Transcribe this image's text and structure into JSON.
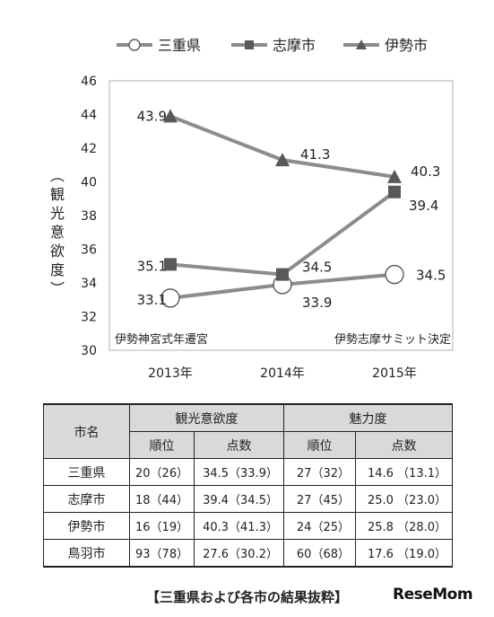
{
  "chart_data": {
    "type": "line",
    "categories": [
      "2013年",
      "2014年",
      "2015年"
    ],
    "ylabel": "（観光意欲度）",
    "ylim": [
      30,
      46
    ],
    "yticks": [
      30,
      32,
      34,
      36,
      38,
      40,
      42,
      44,
      46
    ],
    "legend_position": "top",
    "series": [
      {
        "name": "三重県",
        "marker": "circle",
        "values": [
          33.1,
          33.9,
          34.5
        ],
        "labels": [
          "33.1",
          "33.9",
          "34.5"
        ]
      },
      {
        "name": "志摩市",
        "marker": "square",
        "values": [
          35.1,
          34.5,
          39.4
        ],
        "labels": [
          "35.1",
          "34.5",
          "39.4"
        ]
      },
      {
        "name": "伊勢市",
        "marker": "triangle",
        "values": [
          43.9,
          41.3,
          40.3
        ],
        "labels": [
          "43.9",
          "41.3",
          "40.3"
        ]
      }
    ],
    "annotations": [
      "伊勢神宮式年遷宮",
      "伊勢志摩サミット決定"
    ],
    "colors": {
      "line": "#8c8c8c",
      "marker": "#595959",
      "frame": "#bfbfbf"
    }
  },
  "table": {
    "headers": {
      "city": "市名",
      "group1": "観光意欲度",
      "group2": "魅力度",
      "rank": "順位",
      "score": "点数"
    },
    "rows": [
      {
        "city": "三重県",
        "r1": "20（26）",
        "s1": "34.5（33.9）",
        "r2": "27（32）",
        "s2": "14.6 （13.1）"
      },
      {
        "city": "志摩市",
        "r1": "18（44）",
        "s1": "39.4（34.5）",
        "r2": "27（45）",
        "s2": "25.0 （23.0）"
      },
      {
        "city": "伊勢市",
        "r1": "16（19）",
        "s1": "40.3（41.3）",
        "r2": "24（25）",
        "s2": "25.8 （28.0）"
      },
      {
        "city": "鳥羽市",
        "r1": "93（78）",
        "s1": "27.6（30.2）",
        "r2": "60（68）",
        "s2": "17.6 （19.0）"
      }
    ]
  },
  "caption": "【三重県および各市の結果抜粋】",
  "logo": {
    "text_main": "ReseMom",
    "icon": "resemom-logo"
  }
}
